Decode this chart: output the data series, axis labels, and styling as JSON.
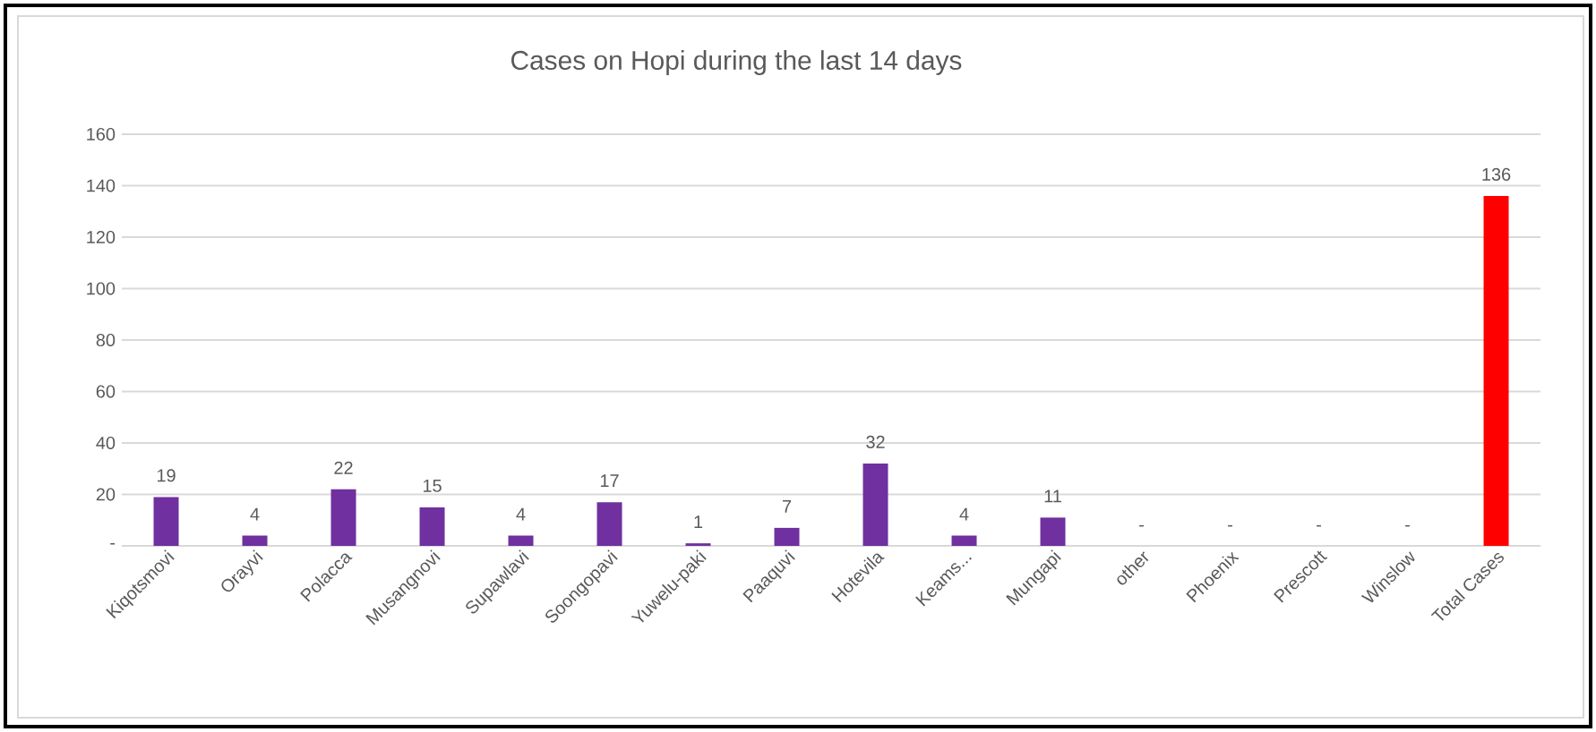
{
  "chart_data": {
    "type": "bar",
    "title": "Cases on Hopi during the last 14 days",
    "categories": [
      "Kiqotsmovi",
      "Orayvi",
      "Polacca",
      "Musangnovi",
      "Supawlavi",
      "Soongopavi",
      "Yuwelu-paki",
      "Paaquvi",
      "Hotevila",
      "Keams...",
      "Mungapi",
      "other",
      "Phoenix",
      "Prescott",
      "Winslow",
      "Total Cases"
    ],
    "values": [
      19,
      4,
      22,
      15,
      4,
      17,
      1,
      7,
      32,
      4,
      11,
      0,
      0,
      0,
      0,
      136
    ],
    "value_labels": [
      "19",
      "4",
      "22",
      "15",
      "4",
      "17",
      "1",
      "7",
      "32",
      "4",
      "11",
      "-",
      "-",
      "-",
      "-",
      "136"
    ],
    "colors": [
      "#7030a0",
      "#7030a0",
      "#7030a0",
      "#7030a0",
      "#7030a0",
      "#7030a0",
      "#7030a0",
      "#7030a0",
      "#7030a0",
      "#7030a0",
      "#7030a0",
      "#7030a0",
      "#7030a0",
      "#7030a0",
      "#7030a0",
      "#ff0000"
    ],
    "ylim": [
      0,
      160
    ],
    "yticks": [
      {
        "value": 0,
        "label": "-"
      },
      20,
      40,
      60,
      80,
      100,
      120,
      140,
      160
    ],
    "grid": "y"
  }
}
